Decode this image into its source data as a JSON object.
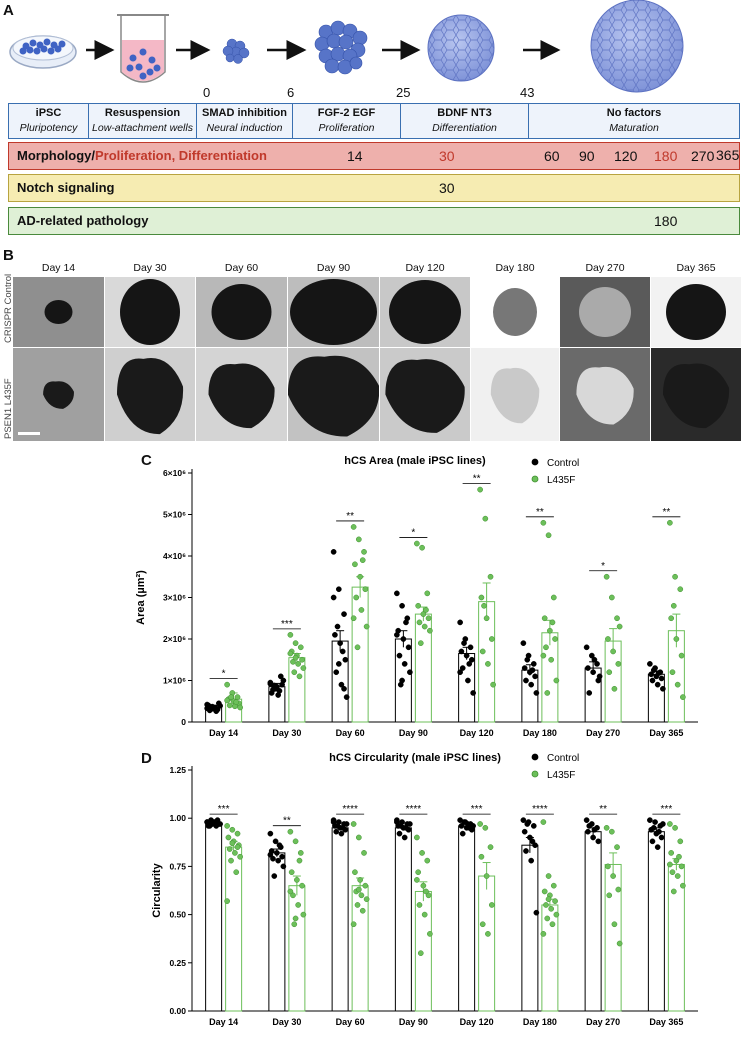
{
  "panels": {
    "a": "A",
    "b": "B",
    "c": "C",
    "d": "D"
  },
  "panel_a": {
    "days": [
      "0",
      "6",
      "25",
      "43"
    ],
    "stages": [
      {
        "head": "iPSC",
        "sub": "Pluripotency"
      },
      {
        "head": "Resuspension",
        "sub": "Low-attachment wells"
      },
      {
        "head": "SMAD inhibition",
        "sub": "Neural induction"
      },
      {
        "head": "FGF-2 EGF",
        "sub": "Proliferation"
      },
      {
        "head": "BDNF NT3",
        "sub": "Differentiation"
      },
      {
        "head": "No factors",
        "sub": "Maturation"
      }
    ],
    "morphology": {
      "label_black": "Morphology/",
      "label_red": "Proliferation, Differentiation",
      "days": [
        {
          "v": "14",
          "red": false
        },
        {
          "v": "30",
          "red": true
        },
        {
          "v": "60",
          "red": false
        },
        {
          "v": "90",
          "red": false
        },
        {
          "v": "120",
          "red": false
        },
        {
          "v": "180",
          "red": true
        },
        {
          "v": "270",
          "red": false
        },
        {
          "v": "365",
          "red": false
        }
      ]
    },
    "notch": {
      "label": "Notch signaling",
      "day": "30"
    },
    "ad": {
      "label": "AD-related pathology",
      "day": "180"
    },
    "colors": {
      "morph_bg": "#eeb0ac",
      "morph_border": "#c0392b",
      "notch_bg": "#f6ecb2",
      "notch_border": "#b8a440",
      "ad_bg": "#dff0d6",
      "ad_border": "#4a8a3c",
      "red_text": "#c0392b",
      "table_border": "#3a6fb0"
    }
  },
  "panel_b": {
    "days": [
      "Day 14",
      "Day 30",
      "Day 60",
      "Day 90",
      "Day 120",
      "Day 180",
      "Day 270",
      "Day 365"
    ],
    "row_labels": [
      "CRISPR Control",
      "PSEN1 L435F"
    ]
  },
  "chart_data": [
    {
      "type": "bar",
      "title": "hCS Area (male iPSC lines)",
      "ylabel": "Area (µm²)",
      "categories": [
        "Day 14",
        "Day 30",
        "Day 60",
        "Day 90",
        "Day 120",
        "Day 180",
        "Day 270",
        "Day 365"
      ],
      "ylim": [
        0,
        6000000
      ],
      "yticks": [
        0,
        1000000,
        2000000,
        3000000,
        4000000,
        5000000,
        6000000
      ],
      "ytick_labels": [
        "0",
        "1×10⁶",
        "2×10⁶",
        "3×10⁶",
        "4×10⁶",
        "5×10⁶",
        "6×10⁶"
      ],
      "legend": [
        "Control",
        "L435F"
      ],
      "legend_position": "top-right",
      "series": [
        {
          "name": "Control",
          "color": "#000000",
          "values": [
            350000,
            850000,
            1950000,
            2000000,
            1650000,
            1250000,
            1300000,
            1150000
          ],
          "sem": [
            50000,
            80000,
            250000,
            200000,
            150000,
            130000,
            150000,
            80000
          ]
        },
        {
          "name": "L435F",
          "color": "#6cbf5a",
          "values": [
            550000,
            1550000,
            3250000,
            2600000,
            2900000,
            2150000,
            1950000,
            2200000
          ],
          "sem": [
            150000,
            100000,
            250000,
            170000,
            450000,
            300000,
            300000,
            400000
          ]
        }
      ],
      "points": {
        "Control": [
          [
            420000,
            370000,
            300000,
            400000,
            320000,
            450000,
            280000,
            350000,
            390000,
            310000,
            260000,
            330000
          ],
          [
            950000,
            800000,
            1100000,
            700000,
            850000,
            900000,
            780000,
            650000,
            1000000,
            880000,
            750000,
            920000
          ],
          [
            4100000,
            3200000,
            2600000,
            2100000,
            1900000,
            1500000,
            1200000,
            900000,
            600000,
            2300000,
            1700000,
            3000000,
            1400000,
            800000
          ],
          [
            3100000,
            2800000,
            2500000,
            2200000,
            2000000,
            1800000,
            1600000,
            1400000,
            1200000,
            900000,
            2400000,
            2100000,
            1000000
          ],
          [
            2400000,
            2000000,
            1800000,
            1700000,
            1600000,
            1500000,
            1300000,
            1000000,
            700000,
            1900000,
            1400000,
            1200000
          ],
          [
            1900000,
            1600000,
            1400000,
            1300000,
            1200000,
            1100000,
            1000000,
            900000,
            700000,
            1500000,
            1250000
          ],
          [
            1800000,
            1600000,
            1400000,
            1300000,
            1200000,
            1000000,
            700000,
            1500000,
            1100000
          ],
          [
            1400000,
            1300000,
            1200000,
            1150000,
            1100000,
            1050000,
            1000000,
            900000,
            800000,
            1250000,
            1180000
          ]
        ],
        "L435F": [
          [
            900000,
            700000,
            600000,
            550000,
            500000,
            450000,
            400000,
            380000,
            350000,
            600000,
            480000,
            520000
          ],
          [
            2100000,
            1900000,
            1800000,
            1700000,
            1600000,
            1500000,
            1450000,
            1400000,
            1300000,
            1200000,
            1100000,
            1650000,
            1550000
          ],
          [
            4700000,
            4400000,
            4100000,
            3800000,
            3500000,
            3200000,
            3000000,
            2700000,
            2300000,
            1800000,
            3900000,
            2500000
          ],
          [
            4300000,
            4200000,
            3100000,
            2800000,
            2600000,
            2500000,
            2400000,
            2300000,
            2200000,
            1900000,
            2700000
          ],
          [
            5600000,
            4900000,
            3500000,
            3000000,
            2500000,
            2000000,
            1700000,
            1400000,
            900000,
            2800000
          ],
          [
            4800000,
            4500000,
            3000000,
            2500000,
            2200000,
            2000000,
            1800000,
            1500000,
            1000000,
            700000,
            2400000,
            1600000
          ],
          [
            3500000,
            3000000,
            2500000,
            2000000,
            1700000,
            1400000,
            1200000,
            800000,
            2300000
          ],
          [
            4800000,
            3500000,
            3200000,
            2500000,
            2000000,
            1600000,
            1200000,
            900000,
            600000,
            2800000
          ]
        ]
      },
      "significance": [
        "*",
        "***",
        "**",
        "*",
        "**",
        "**",
        "*",
        "**"
      ]
    },
    {
      "type": "bar",
      "title": "hCS Circularity (male iPSC lines)",
      "ylabel": "Circularity",
      "categories": [
        "Day 14",
        "Day 30",
        "Day 60",
        "Day 90",
        "Day 120",
        "Day 180",
        "Day 270",
        "Day 365"
      ],
      "ylim": [
        0,
        1.25
      ],
      "yticks": [
        0,
        0.25,
        0.5,
        0.75,
        1.0,
        1.25
      ],
      "ytick_labels": [
        "0.00",
        "0.25",
        "0.50",
        "0.75",
        "1.00",
        "1.25"
      ],
      "legend": [
        "Control",
        "L435F"
      ],
      "legend_position": "top-right",
      "series": [
        {
          "name": "Control",
          "color": "#000000",
          "values": [
            0.97,
            0.82,
            0.95,
            0.95,
            0.96,
            0.86,
            0.93,
            0.93
          ],
          "sem": [
            0.005,
            0.02,
            0.01,
            0.01,
            0.01,
            0.04,
            0.02,
            0.02
          ]
        },
        {
          "name": "L435F",
          "color": "#6cbf5a",
          "values": [
            0.85,
            0.65,
            0.65,
            0.62,
            0.7,
            0.55,
            0.76,
            0.76
          ],
          "sem": [
            0.03,
            0.05,
            0.04,
            0.05,
            0.07,
            0.03,
            0.06,
            0.03
          ]
        }
      ],
      "points": {
        "Control": [
          [
            0.98,
            0.97,
            0.99,
            0.96,
            0.98,
            0.97,
            0.96,
            0.98,
            0.97,
            0.99,
            0.96,
            0.98
          ],
          [
            0.92,
            0.88,
            0.85,
            0.83,
            0.82,
            0.8,
            0.79,
            0.78,
            0.75,
            0.7,
            0.86,
            0.81
          ],
          [
            0.99,
            0.98,
            0.97,
            0.96,
            0.95,
            0.94,
            0.93,
            0.92,
            0.97,
            0.96,
            0.95,
            0.98
          ],
          [
            0.99,
            0.98,
            0.97,
            0.96,
            0.95,
            0.94,
            0.92,
            0.9,
            0.97,
            0.96,
            0.95,
            0.98
          ],
          [
            0.99,
            0.98,
            0.97,
            0.96,
            0.95,
            0.94,
            0.92,
            0.97,
            0.96,
            0.98,
            0.95
          ],
          [
            0.99,
            0.98,
            0.96,
            0.93,
            0.9,
            0.86,
            0.83,
            0.78,
            0.51,
            0.97,
            0.88
          ],
          [
            0.99,
            0.97,
            0.95,
            0.93,
            0.9,
            0.88,
            0.96,
            0.94
          ],
          [
            0.99,
            0.98,
            0.96,
            0.94,
            0.92,
            0.9,
            0.88,
            0.85,
            0.97,
            0.95,
            0.93
          ]
        ],
        "L435F": [
          [
            0.96,
            0.94,
            0.92,
            0.9,
            0.88,
            0.86,
            0.84,
            0.82,
            0.8,
            0.78,
            0.72,
            0.57,
            0.87,
            0.85
          ],
          [
            0.93,
            0.88,
            0.82,
            0.72,
            0.68,
            0.65,
            0.6,
            0.55,
            0.5,
            0.45,
            0.78,
            0.62,
            0.48
          ],
          [
            0.97,
            0.9,
            0.82,
            0.72,
            0.68,
            0.65,
            0.62,
            0.6,
            0.58,
            0.55,
            0.52,
            0.45,
            0.63
          ],
          [
            0.9,
            0.82,
            0.78,
            0.72,
            0.65,
            0.6,
            0.55,
            0.5,
            0.4,
            0.3,
            0.62,
            0.68
          ],
          [
            0.97,
            0.95,
            0.85,
            0.8,
            0.7,
            0.55,
            0.45,
            0.4
          ],
          [
            0.98,
            0.7,
            0.65,
            0.62,
            0.6,
            0.57,
            0.55,
            0.53,
            0.5,
            0.48,
            0.45,
            0.4,
            0.58
          ],
          [
            0.95,
            0.93,
            0.85,
            0.75,
            0.7,
            0.63,
            0.6,
            0.45,
            0.35
          ],
          [
            0.97,
            0.95,
            0.88,
            0.82,
            0.78,
            0.75,
            0.72,
            0.7,
            0.65,
            0.62,
            0.8,
            0.76
          ]
        ]
      },
      "significance": [
        "***",
        "**",
        "****",
        "****",
        "***",
        "****",
        "**",
        "***"
      ]
    }
  ]
}
